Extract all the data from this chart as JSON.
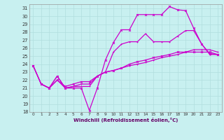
{
  "xlabel": "Windchill (Refroidissement éolien,°C)",
  "bg_color": "#c8f0f0",
  "grid_color": "#b0dede",
  "line_color": "#cc00cc",
  "xlim": [
    -0.5,
    23.5
  ],
  "ylim": [
    18,
    31.5
  ],
  "xticks": [
    0,
    1,
    2,
    3,
    4,
    5,
    6,
    7,
    8,
    9,
    10,
    11,
    12,
    13,
    14,
    15,
    16,
    17,
    18,
    19,
    20,
    21,
    22,
    23
  ],
  "yticks": [
    18,
    19,
    20,
    21,
    22,
    23,
    24,
    25,
    26,
    27,
    28,
    29,
    30,
    31
  ],
  "line1_x": [
    0,
    1,
    2,
    3,
    4,
    5,
    6,
    7,
    8,
    9,
    10,
    11,
    12,
    13,
    14,
    15,
    16,
    17,
    18,
    19,
    20,
    21,
    22,
    23
  ],
  "line1_y": [
    23.8,
    21.5,
    21.0,
    22.5,
    21.0,
    21.0,
    21.0,
    18.2,
    21.0,
    24.5,
    26.7,
    28.3,
    28.3,
    30.2,
    30.2,
    30.2,
    30.2,
    31.2,
    30.8,
    30.7,
    28.5,
    26.5,
    25.3,
    25.2
  ],
  "line2_x": [
    0,
    1,
    2,
    3,
    4,
    5,
    6,
    7,
    8,
    9,
    10,
    11,
    12,
    13,
    14,
    15,
    16,
    17,
    18,
    19,
    20,
    21,
    22,
    23
  ],
  "line2_y": [
    23.8,
    21.5,
    21.0,
    22.5,
    21.0,
    21.2,
    21.2,
    21.2,
    22.5,
    23.0,
    25.5,
    26.5,
    26.8,
    26.8,
    27.8,
    26.8,
    26.8,
    26.8,
    27.5,
    28.2,
    28.2,
    26.5,
    25.2,
    25.2
  ],
  "line3_x": [
    0,
    1,
    2,
    3,
    4,
    5,
    6,
    7,
    8,
    9,
    10,
    11,
    12,
    13,
    14,
    15,
    16,
    17,
    18,
    19,
    20,
    21,
    22,
    23
  ],
  "line3_y": [
    23.8,
    21.5,
    21.0,
    22.0,
    21.2,
    21.5,
    21.8,
    21.8,
    22.5,
    23.0,
    23.2,
    23.5,
    24.0,
    24.3,
    24.5,
    24.8,
    25.0,
    25.2,
    25.5,
    25.5,
    25.5,
    25.5,
    25.5,
    25.2
  ],
  "line4_x": [
    1,
    2,
    3,
    4,
    5,
    6,
    7,
    8,
    9,
    10,
    11,
    12,
    13,
    14,
    15,
    16,
    17,
    18,
    19,
    20,
    21,
    22,
    23
  ],
  "line4_y": [
    21.5,
    21.0,
    22.0,
    21.0,
    21.2,
    21.5,
    21.5,
    22.5,
    23.0,
    23.2,
    23.5,
    23.8,
    24.0,
    24.2,
    24.5,
    24.8,
    25.0,
    25.2,
    25.5,
    25.8,
    25.8,
    25.8,
    25.5
  ]
}
